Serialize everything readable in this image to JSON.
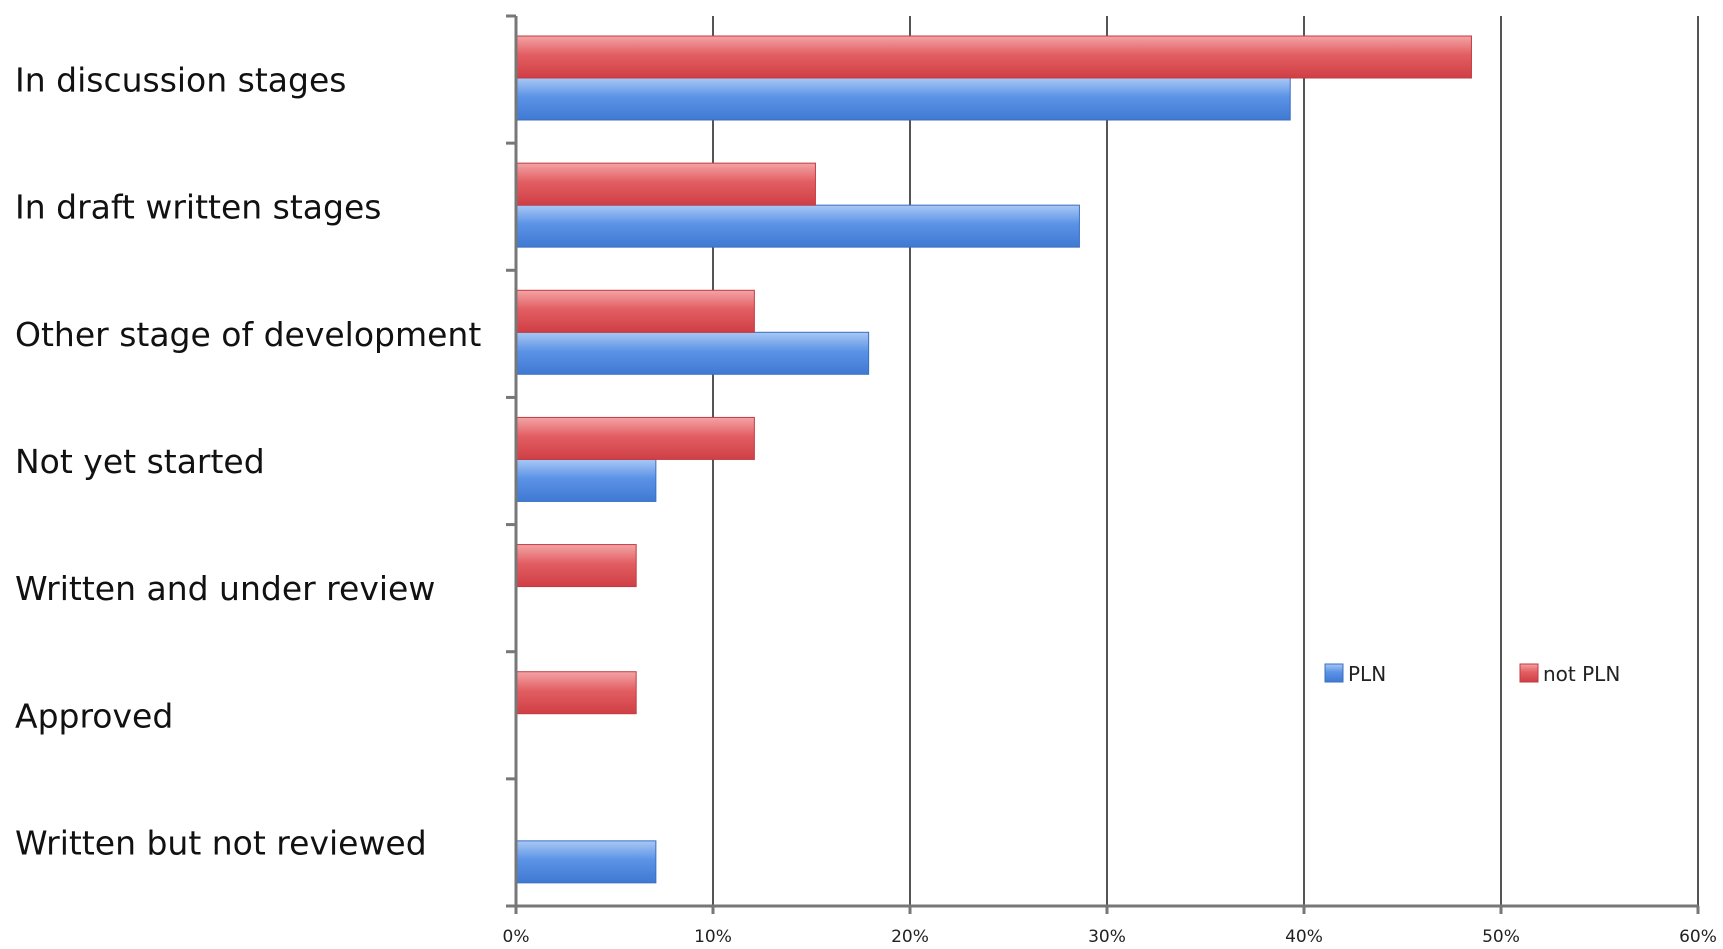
{
  "chart_data": {
    "type": "bar",
    "orientation": "horizontal",
    "title": "",
    "xlabel": "",
    "ylabel": "",
    "xlim": [
      0,
      60
    ],
    "x_ticks": [
      "0%",
      "10%",
      "20%",
      "30%",
      "40%",
      "50%",
      "60%"
    ],
    "x_tick_values": [
      0,
      10,
      20,
      30,
      40,
      50,
      60
    ],
    "grid": "vertical",
    "legend_position": "right",
    "categories": [
      "In discussion stages",
      "In draft written stages",
      "Other stage of development",
      "Not yet started",
      "Written and under review",
      "Approved",
      "Written but not reviewed"
    ],
    "series": [
      {
        "name": "PLN",
        "color": "#4a86e8",
        "values": [
          39.3,
          28.6,
          17.9,
          7.1,
          0,
          0,
          7.1
        ]
      },
      {
        "name": "not PLN",
        "color": "#e0474c",
        "values": [
          48.5,
          15.2,
          12.1,
          12.1,
          6.1,
          6.1,
          0
        ]
      }
    ]
  }
}
